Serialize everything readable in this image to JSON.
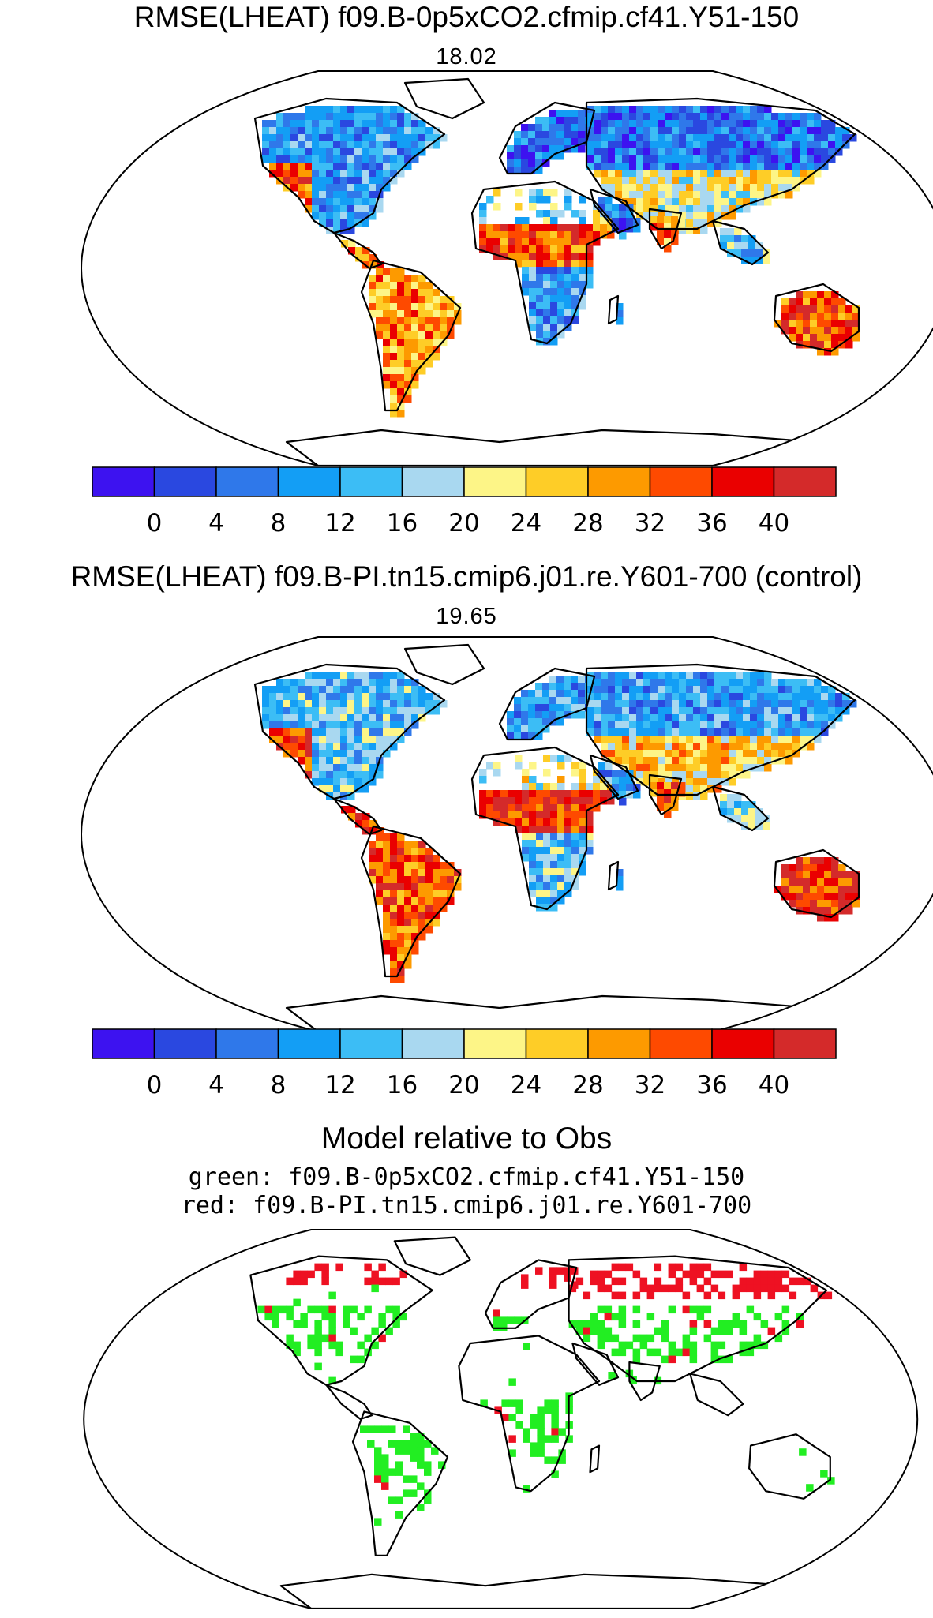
{
  "panels": [
    {
      "title": "RMSE(LHEAT) f09.B-0p5xCO2.cfmip.cf41.Y51-150",
      "global_value": "18.02"
    },
    {
      "title": "RMSE(LHEAT) f09.B-PI.tn15.cmip6.j01.re.Y601-700 (control)",
      "global_value": "19.65"
    }
  ],
  "colorbar": {
    "colors": [
      "#3d12f0",
      "#2a48e0",
      "#2f78ea",
      "#139ef5",
      "#3cbdf5",
      "#a9d8f0",
      "#fdf587",
      "#fecd27",
      "#fd9a00",
      "#fe4a00",
      "#ea0000",
      "#d42a2a"
    ],
    "tick_labels": [
      "0",
      "4",
      "8",
      "12",
      "16",
      "20",
      "24",
      "28",
      "32",
      "36",
      "40"
    ]
  },
  "comparison": {
    "title": "Model relative to Obs",
    "green_line": "green: f09.B-0p5xCO2.cfmip.cf41.Y51-150",
    "red_line": "red: f09.B-PI.tn15.cmip6.j01.re.Y601-700",
    "green_color": "#22ee22",
    "red_color": "#ee1122"
  }
}
